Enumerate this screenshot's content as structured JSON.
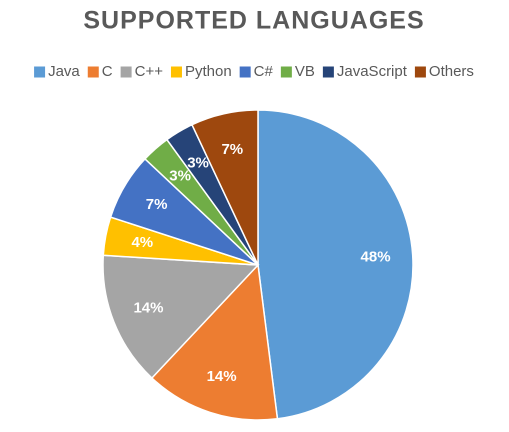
{
  "chart_data": {
    "type": "pie",
    "title": "SUPPORTED LANGUAGES",
    "categories": [
      "Java",
      "C",
      "C++",
      "Python",
      "C#",
      "VB",
      "JavaScript",
      "Others"
    ],
    "values": [
      48,
      14,
      14,
      4,
      7,
      3,
      3,
      7
    ],
    "value_labels": [
      "48%",
      "14%",
      "14%",
      "4%",
      "7%",
      "3%",
      "3%",
      "7%"
    ],
    "colors": [
      "#5b9bd5",
      "#ed7d31",
      "#a5a5a5",
      "#ffc000",
      "#4472c4",
      "#70ad47",
      "#264478",
      "#9e480e"
    ],
    "legend": "top"
  }
}
